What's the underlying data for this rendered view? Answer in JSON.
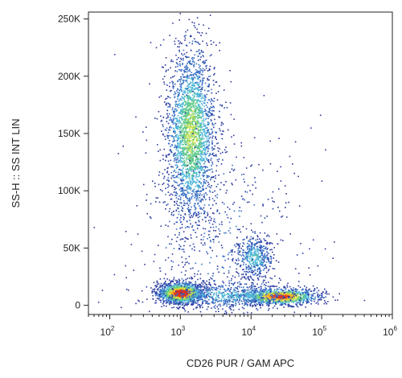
{
  "chart_data": {
    "type": "scatter",
    "title": "",
    "xlabel": "CD26 PUR / GAM APC",
    "ylabel": "SS-H :: SS INT LIN",
    "x_scale": "log",
    "xlim": [
      50,
      1000000
    ],
    "ylim": [
      -8000,
      256000
    ],
    "grid": false,
    "legend": "none",
    "x_ticks": [
      {
        "value": 100,
        "base": "10",
        "exp": "2"
      },
      {
        "value": 1000,
        "base": "10",
        "exp": "3"
      },
      {
        "value": 10000,
        "base": "10",
        "exp": "4"
      },
      {
        "value": 100000,
        "base": "10",
        "exp": "5"
      },
      {
        "value": 1000000,
        "base": "10",
        "exp": "6"
      }
    ],
    "y_ticks": [
      {
        "value": 0,
        "label": "0"
      },
      {
        "value": 50000,
        "label": "50K"
      },
      {
        "value": 100000,
        "label": "100K"
      },
      {
        "value": 150000,
        "label": "150K"
      },
      {
        "value": 200000,
        "label": "200K"
      },
      {
        "value": 250000,
        "label": "250K"
      }
    ],
    "density_colors": [
      "#2b3a9e",
      "#3a6fc4",
      "#4fb8d8",
      "#5fc98a",
      "#c8e04a",
      "#f2b32a",
      "#e0301e"
    ],
    "populations": [
      {
        "x_center": 1400,
        "y_center": 150000,
        "x_spread_decades": 0.17,
        "y_spread": 38000,
        "count": 2600,
        "peak_density": 0.55
      },
      {
        "x_center": 1000,
        "y_center": 11000,
        "x_spread_decades": 0.16,
        "y_spread": 4500,
        "count": 1500,
        "peak_density": 1.0
      },
      {
        "x_center": 25000,
        "y_center": 8000,
        "x_spread_decades": 0.28,
        "y_spread": 3500,
        "count": 1100,
        "peak_density": 0.9
      },
      {
        "x_center": 11000,
        "y_center": 42000,
        "x_spread_decades": 0.13,
        "y_spread": 9000,
        "count": 450,
        "peak_density": 0.35
      },
      {
        "x_center": 5000,
        "y_center": 9000,
        "x_spread_decades": 0.5,
        "y_spread": 6000,
        "count": 700,
        "peak_density": 0.3
      },
      {
        "x_center": 3000,
        "y_center": 60000,
        "x_spread_decades": 0.6,
        "y_spread": 50000,
        "count": 600,
        "peak_density": 0.1
      }
    ]
  }
}
